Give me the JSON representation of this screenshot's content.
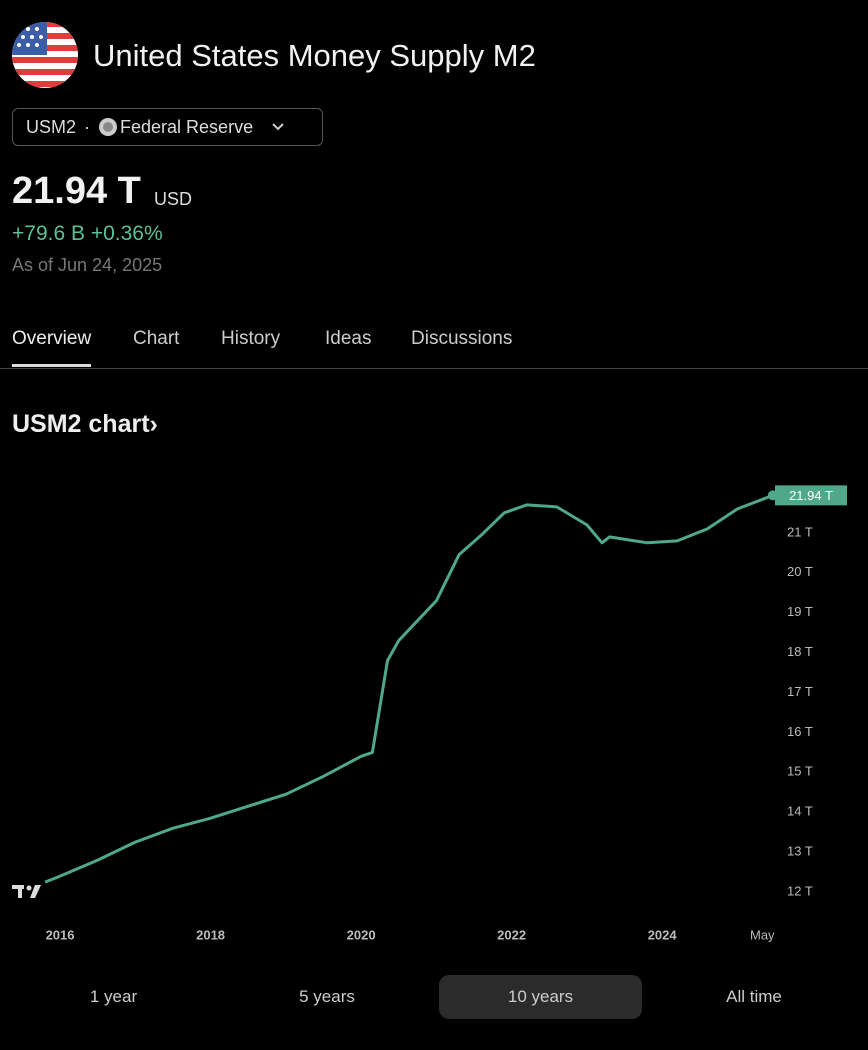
{
  "header": {
    "title": "United States Money Supply M2"
  },
  "symbol": {
    "ticker": "USM2",
    "separator": "·",
    "source": "Federal Reserve"
  },
  "quote": {
    "price": "21.94 T",
    "currency": "USD",
    "change": "+79.6 B",
    "change_percent": "+0.36%",
    "as_of": "As of Jun 24, 2025"
  },
  "tabs": [
    "Overview",
    "Chart",
    "History",
    "Ideas",
    "Discussions"
  ],
  "active_tab": 0,
  "section_title": "USM2 chart›",
  "chart_data": {
    "type": "line",
    "color": "#4fa88a",
    "x": [
      2015.8,
      2016,
      2016.5,
      2017,
      2017.5,
      2018,
      2018.5,
      2019,
      2019.5,
      2020,
      2020.15,
      2020.35,
      2020.5,
      2021,
      2021.3,
      2021.6,
      2021.9,
      2022.2,
      2022.6,
      2023,
      2023.2,
      2023.3,
      2023.8,
      2024.2,
      2024.6,
      2025,
      2025.47
    ],
    "values": [
      12.25,
      12.4,
      12.8,
      13.25,
      13.6,
      13.85,
      14.15,
      14.45,
      14.9,
      15.4,
      15.5,
      17.8,
      18.3,
      19.3,
      20.45,
      20.95,
      21.5,
      21.7,
      21.65,
      21.2,
      20.75,
      20.9,
      20.75,
      20.8,
      21.1,
      21.6,
      21.94
    ],
    "value_labels": [
      null,
      null,
      null,
      null,
      null,
      null,
      null,
      null,
      null,
      null,
      null,
      null,
      null,
      null,
      null,
      null,
      null,
      null,
      null,
      null,
      null,
      null,
      null,
      null,
      null,
      null,
      "21.94 T"
    ],
    "xlim": [
      2015.8,
      2025.6
    ],
    "xticks": [
      2016,
      2018,
      2020,
      2022,
      2024,
      {
        "value": 2025.33,
        "label": "May"
      }
    ],
    "ylim": [
      11.7,
      22.4
    ],
    "yticks": [
      {
        "value": 12,
        "label": "12 T"
      },
      {
        "value": 13,
        "label": "13 T"
      },
      {
        "value": 14,
        "label": "14 T"
      },
      {
        "value": 15,
        "label": "15 T"
      },
      {
        "value": 16,
        "label": "16 T"
      },
      {
        "value": 17,
        "label": "17 T"
      },
      {
        "value": 18,
        "label": "18 T"
      },
      {
        "value": 19,
        "label": "19 T"
      },
      {
        "value": 20,
        "label": "20 T"
      },
      {
        "value": 21,
        "label": "21 T"
      }
    ]
  },
  "ranges": [
    "1 year",
    "5 years",
    "10 years",
    "All time"
  ],
  "selected_range": 2
}
